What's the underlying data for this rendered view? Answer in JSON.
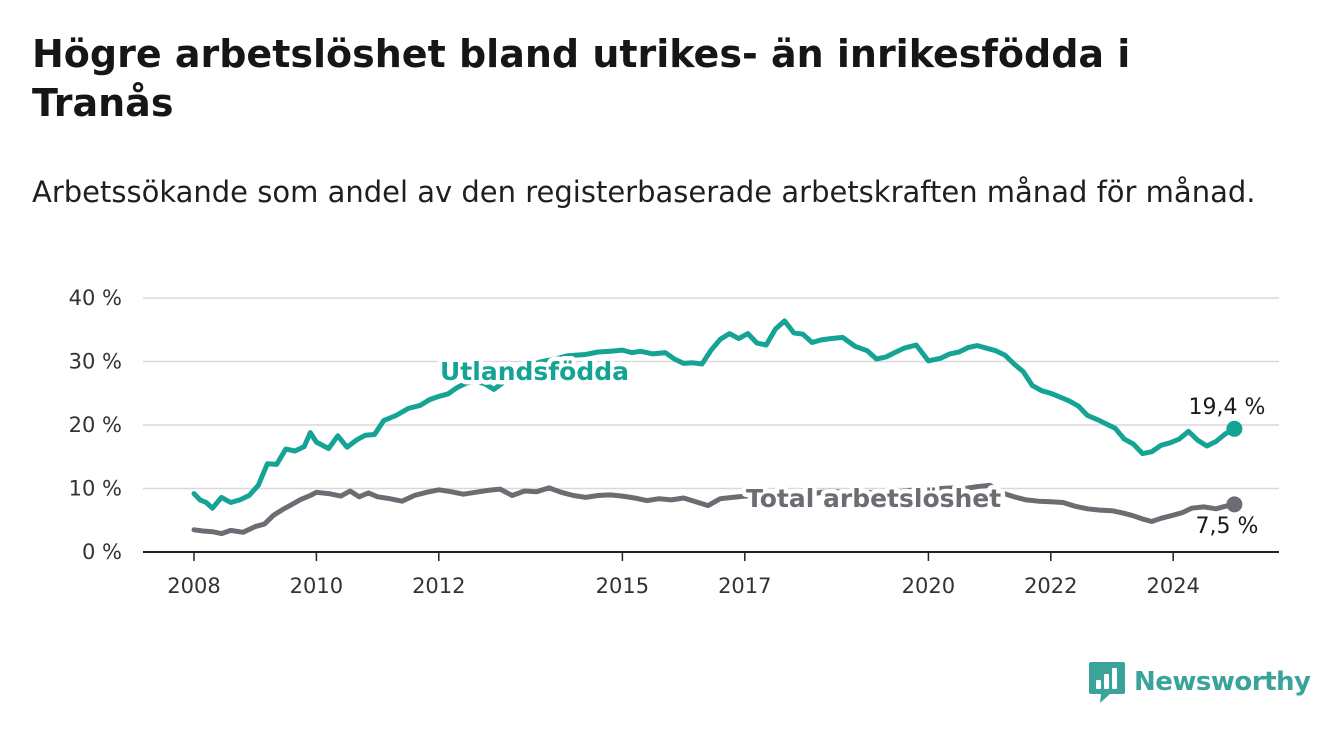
{
  "title": "Högre arbetslöshet bland utrikes- än inrikesfödda i Tranås",
  "subtitle": "Arbetssökande som andel av den registerbaserade arbetskraften månad för månad.",
  "brand": {
    "name": "Newsworthy",
    "icon": "newsworthy-logo-icon"
  },
  "colors": {
    "foreign_born": "#14a394",
    "total": "#6e6b73",
    "grid": "#d9d9d9",
    "axis": "#222222",
    "brand": "#3aa39a"
  },
  "chart_data": {
    "type": "line",
    "title": "Högre arbetslöshet bland utrikes- än inrikesfödda i Tranås",
    "subtitle": "Arbetssökande som andel av den registerbaserade arbetskraften månad för månad.",
    "xlabel": "",
    "ylabel": "",
    "xlim": [
      2008.0,
      2025.5
    ],
    "ylim": [
      0,
      40
    ],
    "grid": true,
    "legend": "inline labels",
    "y_ticks": [
      {
        "value": 0,
        "label": "0 %"
      },
      {
        "value": 10,
        "label": "10 %"
      },
      {
        "value": 20,
        "label": "20 %"
      },
      {
        "value": 30,
        "label": "30 %"
      },
      {
        "value": 40,
        "label": "40 %"
      }
    ],
    "x_ticks": [
      {
        "value": 2008,
        "label": "2008"
      },
      {
        "value": 2010,
        "label": "2010"
      },
      {
        "value": 2012,
        "label": "2012"
      },
      {
        "value": 2015,
        "label": "2015"
      },
      {
        "value": 2017,
        "label": "2017"
      },
      {
        "value": 2020,
        "label": "2020"
      },
      {
        "value": 2022,
        "label": "2022"
      },
      {
        "value": 2024,
        "label": "2024"
      }
    ],
    "series": [
      {
        "name": "Utlandsfödda",
        "end_label": "19,4 %",
        "x": [
          2008.0,
          2008.1,
          2008.2,
          2008.3,
          2008.45,
          2008.6,
          2008.75,
          2008.9,
          2009.05,
          2009.2,
          2009.35,
          2009.5,
          2009.65,
          2009.8,
          2009.9,
          2010.0,
          2010.2,
          2010.35,
          2010.5,
          2010.65,
          2010.8,
          2010.95,
          2011.1,
          2011.3,
          2011.5,
          2011.7,
          2011.85,
          2012.0,
          2012.15,
          2012.3,
          2012.45,
          2012.6,
          2012.75,
          2012.9,
          2013.05,
          2013.2,
          2013.35,
          2013.5,
          2013.65,
          2013.8,
          2013.95,
          2014.1,
          2014.25,
          2014.4,
          2014.6,
          2014.8,
          2015.0,
          2015.15,
          2015.3,
          2015.5,
          2015.7,
          2015.85,
          2016.0,
          2016.15,
          2016.3,
          2016.45,
          2016.6,
          2016.75,
          2016.9,
          2017.05,
          2017.2,
          2017.35,
          2017.5,
          2017.65,
          2017.8,
          2017.95,
          2018.1,
          2018.25,
          2018.4,
          2018.6,
          2018.8,
          2019.0,
          2019.15,
          2019.3,
          2019.45,
          2019.6,
          2019.8,
          2020.0,
          2020.05,
          2020.2,
          2020.35,
          2020.5,
          2020.65,
          2020.8,
          2020.95,
          2021.1,
          2021.25,
          2021.4,
          2021.55,
          2021.7,
          2021.85,
          2022.0,
          2022.15,
          2022.3,
          2022.45,
          2022.6,
          2022.75,
          2022.9,
          2023.05,
          2023.2,
          2023.35,
          2023.5,
          2023.65,
          2023.8,
          2023.95,
          2024.1,
          2024.25,
          2024.4,
          2024.55,
          2024.7,
          2024.85,
          2025.0
        ],
        "values": [
          9.2,
          8.2,
          7.8,
          6.9,
          8.6,
          7.8,
          8.2,
          8.9,
          10.5,
          13.9,
          13.8,
          16.2,
          15.9,
          16.6,
          18.8,
          17.3,
          16.3,
          18.3,
          16.5,
          17.6,
          18.4,
          18.5,
          20.7,
          21.5,
          22.6,
          23.1,
          24.0,
          24.5,
          24.9,
          25.9,
          26.6,
          26.9,
          26.5,
          25.6,
          26.7,
          27.5,
          28.5,
          29.4,
          29.9,
          30.2,
          30.5,
          30.9,
          31.0,
          31.1,
          31.5,
          31.6,
          31.8,
          31.4,
          31.6,
          31.2,
          31.4,
          30.4,
          29.7,
          29.8,
          29.6,
          31.8,
          33.5,
          34.4,
          33.6,
          34.4,
          32.9,
          32.6,
          35.1,
          36.4,
          34.5,
          34.3,
          33.0,
          33.4,
          33.6,
          33.8,
          32.4,
          31.7,
          30.4,
          30.7,
          31.4,
          32.1,
          32.6,
          30.1,
          30.2,
          30.5,
          31.2,
          31.5,
          32.2,
          32.5,
          32.1,
          31.7,
          31.0,
          29.6,
          28.4,
          26.2,
          25.4,
          25.0,
          24.4,
          23.8,
          23.0,
          21.5,
          20.9,
          20.2,
          19.5,
          17.8,
          17.0,
          15.5,
          15.8,
          16.8,
          17.2,
          17.8,
          19.0,
          17.6,
          16.7,
          17.4,
          18.6,
          19.4
        ]
      },
      {
        "name": "Total arbetslöshet",
        "end_label": "7,5 %",
        "x": [
          2008.0,
          2008.15,
          2008.3,
          2008.45,
          2008.6,
          2008.8,
          2009.0,
          2009.15,
          2009.3,
          2009.45,
          2009.6,
          2009.75,
          2009.9,
          2010.0,
          2010.2,
          2010.4,
          2010.55,
          2010.7,
          2010.85,
          2011.0,
          2011.2,
          2011.4,
          2011.6,
          2011.8,
          2012.0,
          2012.2,
          2012.4,
          2012.6,
          2012.8,
          2013.0,
          2013.2,
          2013.4,
          2013.6,
          2013.8,
          2014.0,
          2014.2,
          2014.4,
          2014.6,
          2014.8,
          2015.0,
          2015.2,
          2015.4,
          2015.6,
          2015.8,
          2016.0,
          2016.2,
          2016.4,
          2016.6,
          2016.8,
          2017.0,
          2017.2,
          2017.4,
          2017.6,
          2017.8,
          2018.0,
          2018.2,
          2018.4,
          2018.6,
          2018.8,
          2019.0,
          2019.2,
          2019.4,
          2019.6,
          2019.8,
          2020.0,
          2020.2,
          2020.4,
          2020.6,
          2020.8,
          2021.0,
          2021.2,
          2021.4,
          2021.6,
          2021.8,
          2022.0,
          2022.2,
          2022.4,
          2022.6,
          2022.8,
          2023.0,
          2023.2,
          2023.35,
          2023.5,
          2023.65,
          2023.8,
          2024.0,
          2024.15,
          2024.3,
          2024.5,
          2024.7,
          2024.85,
          2025.0
        ],
        "values": [
          3.5,
          3.3,
          3.2,
          2.9,
          3.4,
          3.1,
          4.0,
          4.4,
          5.8,
          6.7,
          7.5,
          8.3,
          8.9,
          9.4,
          9.2,
          8.8,
          9.6,
          8.7,
          9.3,
          8.7,
          8.4,
          8.0,
          8.9,
          9.4,
          9.8,
          9.5,
          9.1,
          9.4,
          9.7,
          9.9,
          8.9,
          9.6,
          9.5,
          10.1,
          9.4,
          8.9,
          8.6,
          8.9,
          9.0,
          8.8,
          8.5,
          8.1,
          8.4,
          8.2,
          8.5,
          7.9,
          7.3,
          8.4,
          8.6,
          8.8,
          8.9,
          8.7,
          9.2,
          9.4,
          9.0,
          9.3,
          9.6,
          9.4,
          9.6,
          9.3,
          9.5,
          9.1,
          9.6,
          9.8,
          9.9,
          10.0,
          10.1,
          10.0,
          10.3,
          10.5,
          9.3,
          8.7,
          8.2,
          8.0,
          7.9,
          7.8,
          7.2,
          6.8,
          6.6,
          6.5,
          6.1,
          5.7,
          5.2,
          4.8,
          5.3,
          5.8,
          6.2,
          6.9,
          7.1,
          6.8,
          7.2,
          7.5
        ]
      }
    ]
  }
}
